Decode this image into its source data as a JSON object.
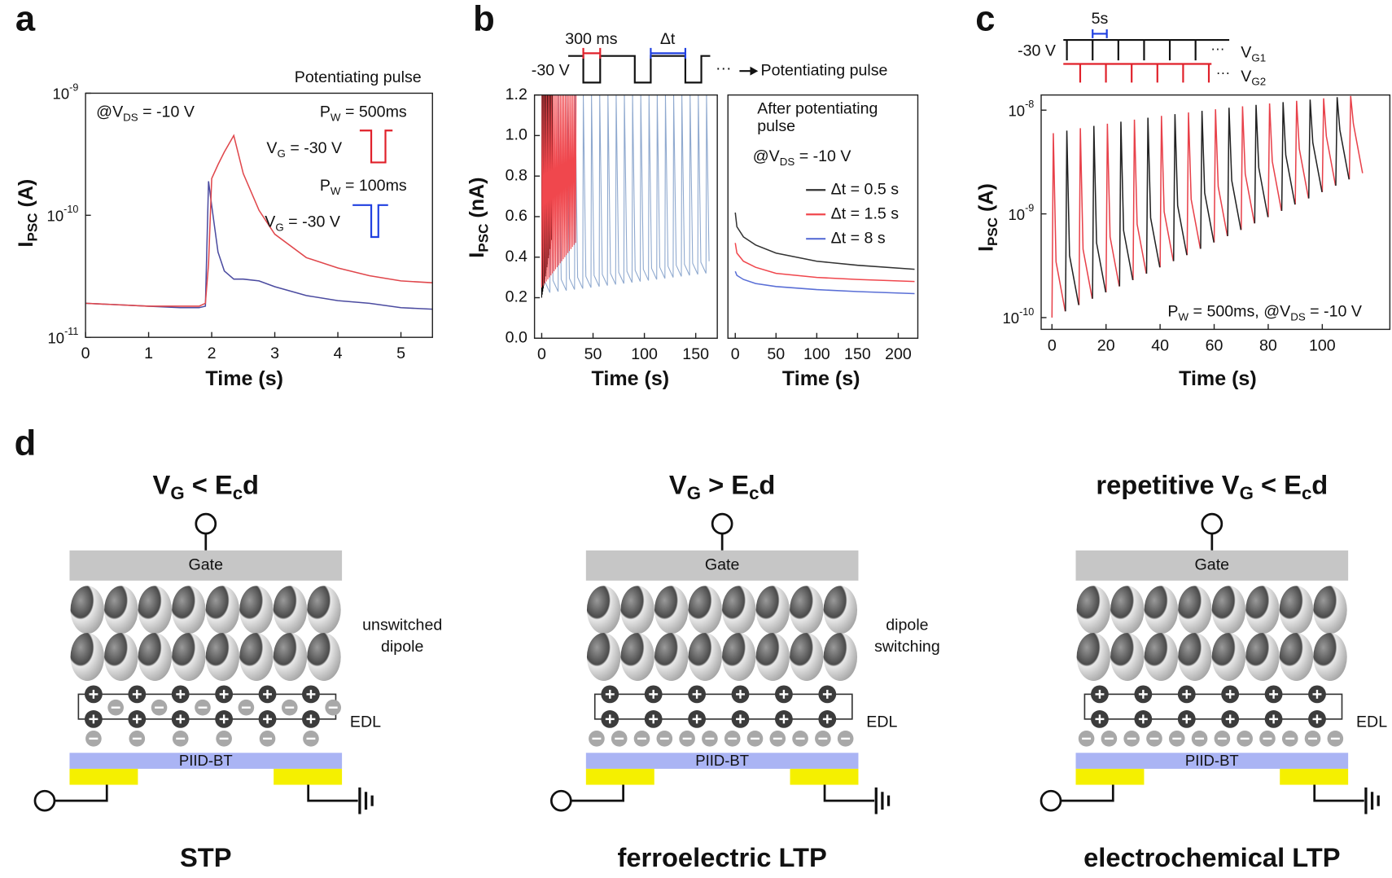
{
  "figure": {
    "panel_labels": [
      "a",
      "b",
      "c",
      "d"
    ]
  },
  "chart_data": [
    {
      "type": "line",
      "log_y": true,
      "x_label": "Time (s)",
      "y_label": [
        "I",
        "PSC",
        " (A)"
      ],
      "xlim": [
        0,
        5.5
      ],
      "xticks": [
        0,
        1,
        2,
        3,
        4,
        5
      ],
      "ylim": [
        1e-11,
        1e-09
      ],
      "yticks": [
        {
          "value": 1e-11,
          "label": [
            "10",
            "-11"
          ]
        },
        {
          "value": 1e-10,
          "label": [
            "10",
            "-10"
          ]
        },
        {
          "value": 1e-09,
          "label": [
            "10",
            "-9"
          ]
        }
      ],
      "x": [
        0,
        0.5,
        1,
        1.5,
        1.8,
        1.9,
        1.95,
        2.0,
        2.1,
        2.2,
        2.35,
        2.5,
        2.75,
        3,
        3.5,
        4,
        4.5,
        5,
        5.5
      ],
      "series": [
        {
          "color": "#4b4ba0",
          "values": [
            1.9e-11,
            1.85e-11,
            1.8e-11,
            1.75e-11,
            1.75e-11,
            1.8e-11,
            1.9e-10,
            1.2e-10,
            5e-11,
            3.5e-11,
            3e-11,
            3e-11,
            2.9e-11,
            2.6e-11,
            2.2e-11,
            2e-11,
            1.9e-11,
            1.75e-11,
            1.7e-11
          ]
        },
        {
          "color": "#e0474c",
          "values": [
            1.9e-11,
            1.85e-11,
            1.8e-11,
            1.8e-11,
            1.8e-11,
            1.9e-11,
            4e-11,
            2e-10,
            2.6e-10,
            3.3e-10,
            4.5e-10,
            2.2e-10,
            1.1e-10,
            7e-11,
            4.5e-11,
            3.7e-11,
            3.2e-11,
            2.9e-11,
            2.8e-11
          ]
        }
      ],
      "annotations": [
        "Potentiating pulse",
        [
          "@V",
          "DS",
          " = -10 V"
        ],
        [
          "P",
          "W",
          " = 500ms"
        ],
        [
          "V",
          "G",
          " = -30 V"
        ],
        [
          "P",
          "W",
          " = 100ms"
        ],
        [
          "V",
          "G",
          " = -30 V"
        ]
      ]
    },
    {
      "type": "line",
      "x_label": "Time (s)",
      "y_label": [
        "I",
        "PSC",
        " (nA)"
      ],
      "xlim": [
        -7,
        171
      ],
      "xticks": [
        0,
        50,
        100,
        150
      ],
      "ylim": [
        0,
        1.2
      ],
      "yticks": [
        {
          "value": 0,
          "label": "0.0"
        },
        0.2,
        0.4,
        0.6,
        0.8,
        {
          "value": 1,
          "label": "1.0"
        },
        1.2
      ],
      "series": [
        {
          "color": "#8fa9cf",
          "x": [
            0,
            0.5,
            3,
            8,
            8.5,
            11,
            16,
            16.5,
            19,
            24,
            24.5,
            27,
            32,
            32.5,
            35,
            40,
            40.5,
            43,
            48,
            48.5,
            51,
            56,
            56.5,
            59,
            64,
            64.5,
            67,
            72,
            72.5,
            75,
            80,
            80.5,
            83,
            88,
            88.5,
            91,
            96,
            96.5,
            99,
            104,
            104.5,
            107,
            112,
            112.5,
            115,
            120,
            120.5,
            123,
            128,
            128.5,
            131,
            136,
            136.5,
            139,
            144,
            144.5,
            147,
            152,
            152.5,
            155,
            160,
            160.5,
            163
          ],
          "values": [
            0.22,
            1.2,
            0.28,
            0.225,
            1.2,
            0.285,
            0.23,
            1.2,
            0.29,
            0.235,
            1.2,
            0.295,
            0.24,
            1.2,
            0.3,
            0.245,
            1.2,
            0.305,
            0.25,
            1.2,
            0.31,
            0.255,
            1.2,
            0.315,
            0.26,
            1.2,
            0.32,
            0.265,
            1.2,
            0.325,
            0.27,
            1.2,
            0.33,
            0.275,
            1.2,
            0.335,
            0.28,
            1.2,
            0.34,
            0.285,
            1.2,
            0.345,
            0.29,
            1.2,
            0.35,
            0.295,
            1.2,
            0.355,
            0.3,
            1.2,
            0.36,
            0.305,
            1.2,
            0.365,
            0.31,
            1.2,
            0.37,
            0.315,
            1.2,
            0.375,
            0.32,
            1.2,
            0.38
          ]
        },
        {
          "color": "#000000",
          "x": [
            0,
            0.2,
            0.5,
            0.7,
            1,
            1.2,
            1.5,
            1.7,
            2,
            2.2,
            2.5,
            2.7,
            3,
            3.2,
            3.5,
            3.7,
            4,
            4.2,
            4.5,
            4.7,
            5,
            5.2,
            5.5,
            5.7,
            6,
            6.2,
            6.5,
            6.7,
            7,
            7.2,
            7.5,
            7.7,
            8,
            8.2,
            8.5,
            8.7,
            9,
            9.2,
            9.5,
            9.7,
            10,
            10.2
          ],
          "values": [
            0.2,
            1.2,
            0.215,
            1.2,
            0.23,
            1.2,
            0.245,
            1.2,
            0.26,
            1.2,
            0.275,
            1.2,
            0.29,
            1.2,
            0.305,
            1.2,
            0.32,
            1.2,
            0.335,
            1.2,
            0.35,
            1.2,
            0.365,
            1.2,
            0.38,
            1.2,
            0.395,
            1.2,
            0.41,
            1.2,
            0.425,
            1.2,
            0.44,
            1.2,
            0.455,
            1.2,
            0.47,
            1.2,
            0.485,
            1.2,
            0.5,
            1.2
          ]
        },
        {
          "color": "#f0474d",
          "x": [
            0,
            0.4,
            1.5,
            1.9,
            3,
            3.4,
            4.5,
            4.9,
            6,
            6.4,
            7.5,
            7.9,
            9,
            9.4,
            10.5,
            10.9,
            12,
            12.4,
            13.5,
            13.9,
            15,
            15.4,
            16.5,
            16.9,
            18,
            18.4,
            19.5,
            19.9,
            21,
            21.4,
            22.5,
            22.9,
            24,
            24.4,
            25.5,
            25.9,
            27,
            27.4,
            28.5,
            28.9,
            30,
            30.4,
            31.5,
            31.9,
            33,
            33.4
          ],
          "values": [
            0.25,
            1.2,
            0.26,
            1.2,
            0.27,
            1.2,
            0.28,
            1.2,
            0.29,
            1.2,
            0.3,
            1.2,
            0.31,
            1.2,
            0.32,
            1.2,
            0.33,
            1.2,
            0.34,
            1.2,
            0.35,
            1.2,
            0.36,
            1.2,
            0.37,
            1.2,
            0.38,
            1.2,
            0.39,
            1.2,
            0.4,
            1.2,
            0.41,
            1.2,
            0.42,
            1.2,
            0.43,
            1.2,
            0.44,
            1.2,
            0.45,
            1.2,
            0.46,
            1.2,
            0.47,
            1.2
          ]
        }
      ],
      "annotations": [
        "300 ms",
        "Δt",
        "-30 V",
        "···",
        "Potentiating pulse"
      ]
    },
    {
      "type": "line",
      "x_label": "Time (s)",
      "xlim": [
        -9,
        224
      ],
      "xticks": [
        0,
        50,
        100,
        150,
        200
      ],
      "ylim": [
        0,
        1.2
      ],
      "x": [
        0,
        2,
        10,
        25,
        50,
        100,
        150,
        220
      ],
      "legend": "upper right",
      "series": [
        {
          "name": "Δt = 0.5 s",
          "color": "#333333",
          "values": [
            0.62,
            0.55,
            0.5,
            0.46,
            0.42,
            0.38,
            0.36,
            0.34
          ]
        },
        {
          "name": "Δt = 1.5 s",
          "color": "#f0474d",
          "values": [
            0.47,
            0.42,
            0.38,
            0.35,
            0.32,
            0.3,
            0.29,
            0.28
          ]
        },
        {
          "name": "Δt = 8 s",
          "color": "#5a6fd6",
          "values": [
            0.33,
            0.31,
            0.29,
            0.27,
            0.255,
            0.24,
            0.23,
            0.22
          ]
        }
      ],
      "annotations": [
        "After potentiating",
        "pulse",
        [
          "@V",
          "DS",
          " = -10 V"
        ]
      ]
    },
    {
      "type": "line",
      "log_y": true,
      "x_label": "Time (s)",
      "y_label": [
        "I",
        "PSC",
        " (A)"
      ],
      "xlim": [
        -4,
        125
      ],
      "xticks": [
        0,
        20,
        40,
        60,
        80,
        100
      ],
      "ylim": [
        7.7e-11,
        1.4e-08
      ],
      "yticks": [
        {
          "value": 1e-10,
          "label": [
            "10",
            "-10"
          ]
        },
        {
          "value": 1e-09,
          "label": [
            "10",
            "-9"
          ]
        },
        {
          "value": 1e-08,
          "label": [
            "10",
            "-8"
          ]
        }
      ],
      "x": [
        0,
        0.5,
        1.5,
        4.9,
        5,
        5.5,
        6.5,
        9.9,
        10,
        10.5,
        11.5,
        14.9,
        15,
        15.5,
        16.5,
        19.9,
        20,
        20.5,
        21.5,
        24.9,
        25,
        25.5,
        26.5,
        29.9,
        30,
        30.5,
        31.5,
        34.9,
        35,
        35.5,
        36.5,
        39.9,
        40,
        40.5,
        41.5,
        44.9,
        45,
        45.5,
        46.5,
        49.9,
        50,
        50.5,
        51.5,
        54.9,
        55,
        55.5,
        56.5,
        59.9,
        60,
        60.5,
        61.5,
        64.9,
        65,
        65.5,
        66.5,
        69.9,
        70,
        70.5,
        71.5,
        74.9,
        75,
        75.5,
        76.5,
        79.9,
        80,
        80.5,
        81.5,
        84.9,
        85,
        85.5,
        86.5,
        89.9,
        90,
        90.5,
        91.5,
        94.9,
        95,
        95.5,
        96.5,
        99.9,
        100,
        100.5,
        101.5,
        104.9,
        105,
        105.5,
        106.5,
        109.9,
        110,
        110.5,
        111.5,
        114.9
      ],
      "series": [
        {
          "color": "#e8414a",
          "values": [
            1e-10,
            6e-09,
            3.45e-10,
            1.15e-10,
            null,
            null,
            null,
            null,
            1.32e-10,
            6.7e-09,
            4.56e-10,
            1.52e-10,
            null,
            null,
            null,
            null,
            1.75e-10,
            7.4e-09,
            6e-10,
            2e-10,
            null,
            null,
            null,
            null,
            2.3e-10,
            8.1e-09,
            7.95e-10,
            2.65e-10,
            null,
            null,
            null,
            null,
            3.05e-10,
            8.8e-09,
            1.05e-09,
            3.5e-10,
            null,
            null,
            null,
            null,
            4e-10,
            9.5e-09,
            1.38e-09,
            4.6e-10,
            null,
            null,
            null,
            null,
            5.3e-10,
            1.02e-08,
            1.83e-09,
            6.1e-10,
            null,
            null,
            null,
            null,
            7e-10,
            1.09e-08,
            2.43e-09,
            8.1e-10,
            null,
            null,
            null,
            null,
            9.3e-10,
            1.16e-08,
            3.21e-09,
            1.07e-09,
            null,
            null,
            null,
            null,
            1.23e-09,
            1.23e-08,
            4.23e-09,
            1.41e-09,
            null,
            null,
            null,
            null,
            1.62e-09,
            1.3e-08,
            5.61e-09,
            1.87e-09,
            null,
            null,
            null,
            null,
            2.15e-09,
            1.37e-08,
            7.41e-09,
            2.47e-09
          ]
        },
        {
          "color": "#222222",
          "values": [
            null,
            null,
            null,
            null,
            1.15e-10,
            6.35e-09,
            3.96e-10,
            1.32e-10,
            null,
            null,
            null,
            null,
            1.52e-10,
            7.05e-09,
            5.25e-10,
            1.75e-10,
            null,
            null,
            null,
            null,
            2e-10,
            7.75e-09,
            6.9e-10,
            2.3e-10,
            null,
            null,
            null,
            null,
            2.65e-10,
            8.45e-09,
            9.15e-10,
            3.05e-10,
            null,
            null,
            null,
            null,
            3.5e-10,
            9.15e-09,
            1.2e-09,
            4e-10,
            null,
            null,
            null,
            null,
            4.6e-10,
            9.85e-09,
            1.59e-09,
            5.3e-10,
            null,
            null,
            null,
            null,
            6.1e-10,
            1.055e-08,
            2.1e-09,
            7e-10,
            null,
            null,
            null,
            null,
            8.1e-10,
            1.125e-08,
            2.79e-09,
            9.3e-10,
            null,
            null,
            null,
            null,
            1.07e-09,
            1.195e-08,
            3.69e-09,
            1.23e-09,
            null,
            null,
            null,
            null,
            1.41e-09,
            1.265e-08,
            4.86e-09,
            1.62e-09,
            null,
            null,
            null,
            null,
            1.87e-09,
            1.335e-08,
            6.45e-09,
            2.15e-09,
            null,
            null,
            null,
            null
          ]
        }
      ],
      "annotations": [
        "5s",
        "-30 V",
        "···",
        "···",
        [
          "V",
          "G1"
        ],
        [
          "V",
          "G2"
        ],
        [
          "P",
          "W",
          " = 500ms, @V",
          "DS",
          " = -10 V"
        ]
      ]
    }
  ],
  "diagram": {
    "panels": [
      {
        "title": [
          "V",
          "G",
          " < E",
          "c",
          "d"
        ],
        "gate": "Gate",
        "dipole_label": [
          "unswitched",
          "dipole"
        ],
        "edl": "EDL",
        "channel": "PIID-BT",
        "caption": "STP"
      },
      {
        "title": [
          "V",
          "G",
          " > E",
          "c",
          "d"
        ],
        "gate": "Gate",
        "dipole_label": [
          "dipole",
          "switching"
        ],
        "edl": "EDL",
        "channel": "PIID-BT",
        "caption": "ferroelectric LTP"
      },
      {
        "title": [
          "repetitive V",
          "G",
          " < E",
          "c",
          "d"
        ],
        "gate": "Gate",
        "edl": "EDL",
        "channel": "PIID-BT",
        "caption": "electrochemical LTP"
      }
    ]
  }
}
